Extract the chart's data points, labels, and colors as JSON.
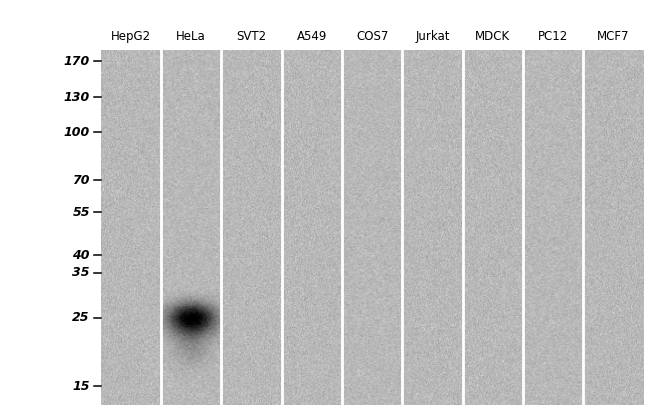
{
  "lane_labels": [
    "HepG2",
    "HeLa",
    "SVT2",
    "A549",
    "COS7",
    "Jurkat",
    "MDCK",
    "PC12",
    "MCF7"
  ],
  "mw_markers": [
    170,
    130,
    100,
    70,
    55,
    40,
    35,
    25,
    15
  ],
  "background_color": "#ffffff",
  "gel_base_gray": 0.72,
  "gel_noise_std": 0.035,
  "band_lane": 1,
  "band_mw": 25,
  "figure_width": 6.5,
  "figure_height": 4.18,
  "label_fontsize": 8.5,
  "mw_fontsize": 9,
  "lane_separator_color": "#ffffff",
  "lane_separator_linewidth": 2.0
}
